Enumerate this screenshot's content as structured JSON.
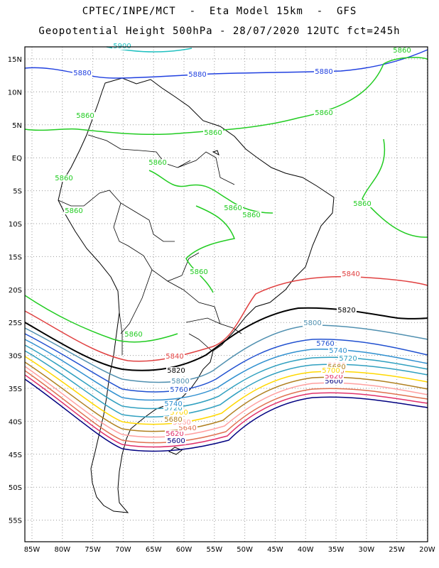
{
  "header": {
    "line1": "CPTEC/INPE/MCT  -  Eta Model 15km  -  GFS",
    "line2": "Geopotential Height 500hPa - 28/07/2020 12UTC fct=245h"
  },
  "axes": {
    "lat_labels": [
      "15N",
      "10N",
      "5N",
      "EQ",
      "5S",
      "10S",
      "15S",
      "20S",
      "25S",
      "30S",
      "35S",
      "40S",
      "45S",
      "50S",
      "55S"
    ],
    "lon_labels": [
      "85W",
      "80W",
      "75W",
      "70W",
      "65W",
      "60W",
      "55W",
      "50W",
      "45W",
      "40W",
      "35W",
      "30W",
      "25W",
      "20W"
    ],
    "grid": "dotted"
  },
  "contours": [
    {
      "level": "5600",
      "color": "#000080",
      "labels": [
        "5600",
        "5600"
      ]
    },
    {
      "level": "5620",
      "color": "#e0306a",
      "labels": [
        "5620",
        "5620"
      ]
    },
    {
      "level": "5640",
      "color": "#e07050",
      "labels": [
        "5640",
        "5640"
      ]
    },
    {
      "level": "5660",
      "color": "#ffa0a0",
      "labels": [
        "5660",
        "5660"
      ]
    },
    {
      "level": "5680",
      "color": "#b08020",
      "labels": [
        "5680",
        "5680"
      ]
    },
    {
      "level": "5700",
      "color": "#ffd800",
      "labels": [
        "5700",
        "5700"
      ]
    },
    {
      "level": "5720",
      "color": "#30a0c0",
      "labels": [
        "5720",
        "5720"
      ]
    },
    {
      "level": "5740",
      "color": "#3090d0",
      "labels": [
        "5740",
        "5740"
      ]
    },
    {
      "level": "5760",
      "color": "#2050d0",
      "labels": [
        "5760",
        "5760"
      ]
    },
    {
      "level": "5800",
      "color": "#5090b0",
      "labels": [
        "5800",
        "5800"
      ]
    },
    {
      "level": "5820",
      "color": "#000000",
      "labels": [
        "5820",
        "5820"
      ]
    },
    {
      "level": "5840",
      "color": "#e04040",
      "labels": [
        "5840",
        "5840"
      ]
    },
    {
      "level": "5860",
      "color": "#22cc22",
      "labels": [
        "5860",
        "5860",
        "5860",
        "5860",
        "5860",
        "5860",
        "5860",
        "5860",
        "5860",
        "5860",
        "5860",
        "5860"
      ]
    },
    {
      "level": "5880",
      "color": "#2040e0",
      "labels": [
        "5880",
        "5880",
        "5880"
      ]
    },
    {
      "level": "5900",
      "color": "#20c0c0",
      "labels": [
        "5900"
      ]
    }
  ],
  "colors": {
    "land_border": "#000000",
    "grid": "#9a9a9a",
    "frame": "#000000"
  }
}
